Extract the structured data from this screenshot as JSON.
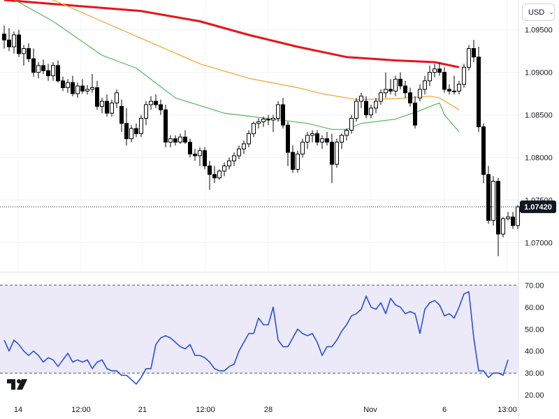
{
  "toolbar": {
    "currency": "USD"
  },
  "icons": {
    "dropdown": "chevron-down-icon",
    "logo": "tradingview-logo"
  },
  "colors": {
    "bull_candle_fill": "#ffffff",
    "candle_stroke": "#000000",
    "ma_slow": "#e8131a",
    "ma_mid": "#f4a12b",
    "ma_fast": "#55b55c",
    "rsi_line": "#2a4fd6",
    "rsi_band": "#eceaf9",
    "price_badge": "#131722"
  },
  "chart_data": [
    {
      "type": "candlestick",
      "price_axis": {
        "ticks": [
          "1.09500",
          "1.09000",
          "1.08500",
          "1.08000",
          "1.07500",
          "1.07000"
        ],
        "ylim": [
          1.0665,
          1.0985
        ]
      },
      "last_price": "1.07420",
      "x_ticks": [
        "14",
        "12:00",
        "21",
        "12:00",
        "28",
        "Nov",
        "6",
        "13:00"
      ],
      "candles": [
        [
          1.0945,
          1.0955,
          1.0928,
          1.0938
        ],
        [
          1.0938,
          1.0952,
          1.0925,
          1.093
        ],
        [
          1.093,
          1.0948,
          1.0922,
          1.0944
        ],
        [
          1.0944,
          1.095,
          1.0918,
          1.0922
        ],
        [
          1.0922,
          1.0932,
          1.0908,
          1.0928
        ],
        [
          1.0928,
          1.0934,
          1.0912,
          1.0916
        ],
        [
          1.0916,
          1.0928,
          1.0895,
          1.09
        ],
        [
          1.09,
          1.0912,
          1.0893,
          1.0908
        ],
        [
          1.0908,
          1.0915,
          1.0898,
          1.0902
        ],
        [
          1.0902,
          1.091,
          1.089,
          1.0896
        ],
        [
          1.0896,
          1.0912,
          1.089,
          1.0908
        ],
        [
          1.0908,
          1.0914,
          1.0888,
          1.089
        ],
        [
          1.089,
          1.0895,
          1.0878,
          1.0882
        ],
        [
          1.0882,
          1.0892,
          1.0876,
          1.0888
        ],
        [
          1.0888,
          1.0896,
          1.0872,
          1.0875
        ],
        [
          1.0875,
          1.0888,
          1.087,
          1.0884
        ],
        [
          1.0884,
          1.0892,
          1.0875,
          1.0878
        ],
        [
          1.0878,
          1.0885,
          1.0874,
          1.088
        ],
        [
          1.088,
          1.0898,
          1.0876,
          1.0882
        ],
        [
          1.0882,
          1.089,
          1.0856,
          1.086
        ],
        [
          1.086,
          1.087,
          1.0852,
          1.0866
        ],
        [
          1.0866,
          1.0874,
          1.0848,
          1.0852
        ],
        [
          1.0852,
          1.0868,
          1.0848,
          1.0864
        ],
        [
          1.0864,
          1.088,
          1.0858,
          1.0876
        ],
        [
          1.086,
          1.0868,
          1.083,
          1.084
        ],
        [
          1.084,
          1.0858,
          1.0814,
          1.0822
        ],
        [
          1.0822,
          1.0838,
          1.0818,
          1.0834
        ],
        [
          1.0834,
          1.084,
          1.0824,
          1.0828
        ],
        [
          1.0828,
          1.085,
          1.0824,
          1.0846
        ],
        [
          1.0846,
          1.0866,
          1.0838,
          1.0862
        ],
        [
          1.0862,
          1.0872,
          1.0856,
          1.0866
        ],
        [
          1.0866,
          1.0874,
          1.0858,
          1.0862
        ],
        [
          1.0862,
          1.0868,
          1.085,
          1.0856
        ],
        [
          1.0856,
          1.0862,
          1.0812,
          1.0818
        ],
        [
          1.0818,
          1.0826,
          1.0812,
          1.0822
        ],
        [
          1.0822,
          1.0826,
          1.0814,
          1.0818
        ],
        [
          1.0818,
          1.0828,
          1.0816,
          1.0824
        ],
        [
          1.0824,
          1.0832,
          1.0816,
          1.0818
        ],
        [
          1.0818,
          1.0822,
          1.08,
          1.0804
        ],
        [
          1.0804,
          1.081,
          1.0796,
          1.0802
        ],
        [
          1.0802,
          1.0812,
          1.079,
          1.0808
        ],
        [
          1.0808,
          1.0812,
          1.0786,
          1.079
        ],
        [
          1.079,
          1.0796,
          1.0762,
          1.078
        ],
        [
          1.078,
          1.079,
          1.077,
          1.0776
        ],
        [
          1.0776,
          1.0786,
          1.0774,
          1.0784
        ],
        [
          1.0784,
          1.0794,
          1.0778,
          1.079
        ],
        [
          1.079,
          1.08,
          1.0786,
          1.0796
        ],
        [
          1.0796,
          1.0806,
          1.079,
          1.0802
        ],
        [
          1.0802,
          1.0814,
          1.0798,
          1.081
        ],
        [
          1.081,
          1.082,
          1.0804,
          1.0816
        ],
        [
          1.0816,
          1.0832,
          1.0812,
          1.0828
        ],
        [
          1.0828,
          1.0842,
          1.0824,
          1.084
        ],
        [
          1.084,
          1.0846,
          1.0834,
          1.0842
        ],
        [
          1.0842,
          1.0848,
          1.0836,
          1.0845
        ],
        [
          1.0845,
          1.085,
          1.0838,
          1.0844
        ],
        [
          1.0844,
          1.085,
          1.083,
          1.0846
        ],
        [
          1.0846,
          1.0866,
          1.0842,
          1.0862
        ],
        [
          1.0862,
          1.087,
          1.0834,
          1.0838
        ],
        [
          1.0838,
          1.0842,
          1.079,
          1.0806
        ],
        [
          1.0806,
          1.0814,
          1.0782,
          1.0786
        ],
        [
          1.0786,
          1.0808,
          1.0782,
          1.0804
        ],
        [
          1.0804,
          1.0822,
          1.08,
          1.0818
        ],
        [
          1.0818,
          1.083,
          1.081,
          1.0826
        ],
        [
          1.0826,
          1.0832,
          1.0818,
          1.0828
        ],
        [
          1.0828,
          1.0832,
          1.0814,
          1.0818
        ],
        [
          1.0818,
          1.0826,
          1.081,
          1.0822
        ],
        [
          1.0822,
          1.083,
          1.0814,
          1.0818
        ],
        [
          1.0818,
          1.0828,
          1.077,
          1.0792
        ],
        [
          1.0792,
          1.0822,
          1.0788,
          1.0818
        ],
        [
          1.0818,
          1.0828,
          1.081,
          1.0826
        ],
        [
          1.0826,
          1.0834,
          1.082,
          1.0832
        ],
        [
          1.0832,
          1.085,
          1.0828,
          1.0846
        ],
        [
          1.0846,
          1.087,
          1.0842,
          1.0866
        ],
        [
          1.0866,
          1.0876,
          1.0858,
          1.0872
        ],
        [
          1.0866,
          1.0872,
          1.0846,
          1.085
        ],
        [
          1.085,
          1.0862,
          1.0846,
          1.0858
        ],
        [
          1.0858,
          1.087,
          1.0852,
          1.0866
        ],
        [
          1.0866,
          1.088,
          1.0862,
          1.0876
        ],
        [
          1.0876,
          1.09,
          1.087,
          1.088
        ],
        [
          1.088,
          1.0892,
          1.0874,
          1.0878
        ],
        [
          1.0878,
          1.0896,
          1.0872,
          1.0892
        ],
        [
          1.0892,
          1.09,
          1.088,
          1.0884
        ],
        [
          1.0884,
          1.089,
          1.087,
          1.0876
        ],
        [
          1.0876,
          1.0882,
          1.086,
          1.0864
        ],
        [
          1.0864,
          1.0872,
          1.0834,
          1.0838
        ],
        [
          1.087,
          1.0886,
          1.0866,
          1.088
        ],
        [
          1.088,
          1.0896,
          1.0874,
          1.089
        ],
        [
          1.089,
          1.0908,
          1.0884,
          1.09
        ],
        [
          1.09,
          1.091,
          1.0894,
          1.0904
        ],
        [
          1.0904,
          1.0912,
          1.0896,
          1.09
        ],
        [
          1.09,
          1.0906,
          1.0876,
          1.088
        ],
        [
          1.088,
          1.0886,
          1.0874,
          1.0878
        ],
        [
          1.0878,
          1.0896,
          1.0874,
          1.0878
        ],
        [
          1.0878,
          1.089,
          1.0874,
          1.0886
        ],
        [
          1.0886,
          1.091,
          1.0882,
          1.0906
        ],
        [
          1.0906,
          1.0932,
          1.0902,
          1.0928
        ],
        [
          1.0928,
          1.0938,
          1.0912,
          1.0918
        ],
        [
          1.0918,
          1.093,
          1.083,
          1.0836
        ],
        [
          1.0836,
          1.084,
          1.077,
          1.078
        ],
        [
          1.078,
          1.079,
          1.0722,
          1.0726
        ],
        [
          1.0726,
          1.0778,
          1.072,
          1.0772
        ],
        [
          1.0772,
          1.0776,
          1.0684,
          1.071
        ],
        [
          1.071,
          1.073,
          1.0706,
          1.0728
        ],
        [
          1.0728,
          1.0736,
          1.0726,
          1.073
        ],
        [
          1.073,
          1.0736,
          1.0716,
          1.072
        ],
        [
          1.072,
          1.0744,
          1.0716,
          1.0742
        ]
      ],
      "moving_averages": [
        {
          "values": [
            [
              0,
              1.0985
            ],
            [
              28,
              1.0972
            ],
            [
              40,
              1.096
            ],
            [
              50,
              1.0944
            ],
            [
              60,
              1.093
            ],
            [
              70,
              1.0918
            ],
            [
              80,
              1.0914
            ],
            [
              88,
              1.0912
            ],
            [
              93,
              1.0906
            ]
          ]
        },
        {
          "values": [
            [
              0,
              1.0992
            ],
            [
              10,
              1.0985
            ],
            [
              20,
              1.096
            ],
            [
              30,
              1.0935
            ],
            [
              40,
              1.091
            ],
            [
              50,
              1.0893
            ],
            [
              60,
              1.0882
            ],
            [
              65,
              1.0875
            ],
            [
              72,
              1.0868
            ],
            [
              80,
              1.0869
            ],
            [
              87,
              1.0872
            ],
            [
              89,
              1.087
            ],
            [
              93,
              1.0856
            ]
          ]
        },
        {
          "values": [
            [
              0,
              1.0992
            ],
            [
              10,
              1.096
            ],
            [
              20,
              1.092
            ],
            [
              27,
              1.0905
            ],
            [
              35,
              1.087
            ],
            [
              45,
              1.0852
            ],
            [
              55,
              1.0845
            ],
            [
              62,
              1.084
            ],
            [
              67,
              1.0833
            ],
            [
              70,
              1.0833
            ],
            [
              73,
              1.084
            ],
            [
              80,
              1.0845
            ],
            [
              85,
              1.0855
            ],
            [
              88,
              1.0862
            ],
            [
              89,
              1.0864
            ],
            [
              90,
              1.085
            ],
            [
              93,
              1.083
            ]
          ]
        }
      ]
    },
    {
      "type": "line",
      "ticks": [
        "70.00",
        "60.00",
        "50.00",
        "40.00",
        "30.00",
        "20.00"
      ],
      "ylim": [
        18,
        72
      ],
      "band": [
        30,
        70
      ],
      "values": [
        45,
        40,
        45,
        43,
        40,
        38,
        40,
        38,
        35,
        37,
        36,
        33,
        36,
        39,
        35,
        36,
        35,
        36,
        32,
        35,
        36,
        32,
        31,
        31,
        29,
        29,
        27,
        25,
        28,
        32,
        32,
        43,
        46,
        47,
        46,
        44,
        42,
        41,
        43,
        38,
        38,
        37,
        35,
        32,
        31,
        31,
        33,
        34,
        40,
        44,
        48,
        48,
        55,
        52,
        52,
        60,
        45,
        42,
        42,
        46,
        50,
        48,
        47,
        48,
        44,
        38,
        42,
        42,
        45,
        49,
        52,
        56,
        57,
        59,
        65,
        60,
        59,
        62,
        57,
        64,
        61,
        60,
        57,
        58,
        57,
        48,
        59,
        62,
        63,
        61,
        56,
        57,
        55,
        60,
        66,
        67,
        46,
        31,
        31,
        28,
        30,
        30,
        29,
        36
      ]
    }
  ]
}
